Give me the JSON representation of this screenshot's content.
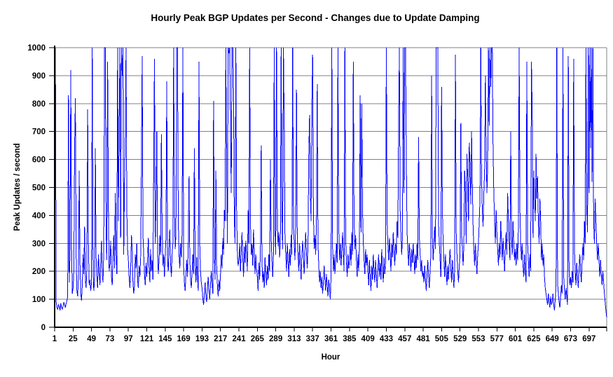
{
  "chart_data": {
    "type": "line",
    "title": "Hourly Peak BGP Updates per Second - Changes due to Update Damping",
    "xlabel": "Hour",
    "ylabel": "Peak Updates / second",
    "xlim": [
      1,
      720
    ],
    "ylim": [
      0,
      1000
    ],
    "x_ticks": [
      1,
      25,
      49,
      73,
      97,
      121,
      145,
      169,
      193,
      217,
      241,
      265,
      289,
      313,
      337,
      361,
      385,
      409,
      433,
      457,
      481,
      505,
      529,
      553,
      577,
      601,
      625,
      649,
      673,
      697
    ],
    "y_ticks": [
      0,
      100,
      200,
      300,
      400,
      500,
      600,
      700,
      800,
      900,
      1000
    ],
    "grid": "horizontal-major",
    "legend": "none",
    "line_color": "#0000FF",
    "gridline_color": "#808080",
    "axis_color": "#000000",
    "background_color": "#FFFFFF",
    "x_start": 1,
    "x_step": 1,
    "values": [
      620,
      1000,
      90,
      70,
      65,
      80,
      75,
      60,
      85,
      70,
      65,
      75,
      90,
      80,
      70,
      85,
      95,
      110,
      830,
      160,
      250,
      920,
      300,
      120,
      140,
      200,
      640,
      820,
      250,
      130,
      110,
      180,
      560,
      230,
      120,
      95,
      150,
      260,
      190,
      360,
      170,
      140,
      220,
      780,
      300,
      150,
      170,
      130,
      160,
      1000,
      210,
      130,
      170,
      640,
      250,
      180,
      140,
      260,
      200,
      150,
      230,
      310,
      190,
      160,
      280,
      1000,
      1000,
      340,
      240,
      950,
      420,
      200,
      230,
      310,
      180,
      150,
      260,
      330,
      210,
      480,
      260,
      190,
      1000,
      380,
      700,
      1000,
      320,
      1000,
      900,
      1000,
      260,
      530,
      690,
      1000,
      420,
      280,
      240,
      180,
      140,
      200,
      330,
      280,
      160,
      120,
      150,
      260,
      210,
      300,
      170,
      140,
      220,
      180,
      250,
      560,
      970,
      330,
      260,
      190,
      150,
      230,
      180,
      240,
      320,
      210,
      160,
      280,
      200,
      240,
      170,
      560,
      960,
      300,
      430,
      700,
      280,
      190,
      240,
      330,
      260,
      690,
      350,
      220,
      260,
      180,
      260,
      320,
      880,
      240,
      200,
      290,
      350,
      230,
      180,
      260,
      300,
      1000,
      430,
      280,
      330,
      1000,
      1000,
      380,
      260,
      210,
      300,
      250,
      340,
      1000,
      220,
      160,
      130,
      190,
      240,
      180,
      290,
      540,
      250,
      170,
      140,
      200,
      260,
      190,
      640,
      230,
      160,
      250,
      180,
      130,
      950,
      300,
      200,
      160,
      140,
      100,
      80,
      120,
      160,
      110,
      90,
      140,
      180,
      130,
      100,
      150,
      200,
      160,
      120,
      810,
      250,
      170,
      560,
      220,
      150,
      110,
      170,
      130,
      190,
      260,
      210,
      320,
      260,
      420,
      380,
      1000,
      560,
      300,
      1000,
      980,
      1000,
      720,
      480,
      1000,
      1000,
      840,
      380,
      300,
      1000,
      420,
      260,
      220,
      240,
      300,
      200,
      260,
      340,
      250,
      180,
      290,
      230,
      310,
      260,
      200,
      420,
      300,
      1000,
      380,
      260,
      300,
      220,
      350,
      270,
      190,
      260,
      210,
      180,
      130,
      230,
      170,
      280,
      650,
      240,
      160,
      200,
      140,
      250,
      190,
      150,
      220,
      170,
      260,
      200,
      600,
      320,
      240,
      180,
      260,
      1000,
      340,
      260,
      1000,
      380,
      290,
      340,
      250,
      300,
      1000,
      420,
      280,
      1000,
      730,
      320,
      260,
      200,
      300,
      240,
      180,
      280,
      220,
      330,
      260,
      1000,
      380,
      300,
      240,
      380,
      850,
      320,
      260,
      200,
      300,
      230,
      170,
      260,
      310,
      250,
      190,
      280,
      340,
      270,
      210,
      300,
      620,
      760,
      480,
      380,
      800,
      975,
      420,
      280,
      330,
      260,
      380,
      870,
      300,
      220,
      160,
      200,
      140,
      180,
      120,
      160,
      220,
      170,
      130,
      190,
      150,
      110,
      170,
      140,
      100,
      180,
      1000,
      280,
      200,
      260,
      190,
      240,
      300,
      230,
      1000,
      360,
      240,
      300,
      220,
      280,
      340,
      260,
      200,
      1000,
      320,
      240,
      180,
      260,
      210,
      240,
      300,
      220,
      340,
      260,
      950,
      380,
      280,
      330,
      240,
      180,
      260,
      200,
      300,
      830,
      340,
      800,
      420,
      300,
      240,
      190,
      280,
      220,
      260,
      200,
      150,
      240,
      180,
      130,
      220,
      170,
      260,
      200,
      160,
      240,
      190,
      140,
      210,
      260,
      180,
      230,
      170,
      280,
      210,
      160,
      250,
      190,
      230,
      1000,
      380,
      300,
      240,
      320,
      260,
      200,
      300,
      250,
      340,
      280,
      220,
      300,
      260,
      380,
      320,
      730,
      1000,
      420,
      340,
      260,
      320,
      1000,
      480,
      1000,
      1000,
      620,
      340,
      280,
      220,
      300,
      260,
      200,
      280,
      230,
      300,
      250,
      190,
      260,
      210,
      300,
      240,
      680,
      320,
      260,
      200,
      240,
      180,
      200,
      160,
      220,
      170,
      130,
      190,
      240,
      180,
      140,
      200,
      260,
      900,
      320,
      240,
      300,
      360,
      280,
      1000,
      1000,
      1000,
      380,
      300,
      240,
      180,
      860,
      420,
      300,
      240,
      180,
      260,
      200,
      150,
      220,
      170,
      230,
      280,
      210,
      160,
      240,
      190,
      140,
      210,
      975,
      340,
      260,
      200,
      160,
      220,
      260,
      730,
      340,
      280,
      220,
      300,
      560,
      480,
      300,
      620,
      540,
      380,
      660,
      580,
      440,
      700,
      520,
      360,
      280,
      220,
      300,
      240,
      190,
      260,
      300,
      380,
      460,
      1000,
      540,
      420,
      360,
      480,
      560,
      900,
      640,
      480,
      580,
      1000,
      720,
      1000,
      860,
      1000,
      1000,
      640,
      480,
      380,
      300,
      420,
      340,
      280,
      220,
      300,
      250,
      380,
      300,
      240,
      320,
      260,
      200,
      280,
      340,
      260,
      480,
      380,
      300,
      240,
      700,
      320,
      260,
      380,
      300,
      240,
      280,
      220,
      300,
      240,
      360,
      1000,
      420,
      300,
      240,
      300,
      220,
      180,
      260,
      200,
      160,
      950,
      300,
      240,
      180,
      260,
      200,
      950,
      770,
      320,
      560,
      480,
      380,
      620,
      460,
      540,
      380,
      300,
      460,
      380,
      240,
      300,
      220,
      260,
      180,
      140,
      120,
      100,
      80,
      120,
      90,
      70,
      110,
      80,
      90,
      120,
      80,
      60,
      100,
      140,
      1000,
      160,
      120,
      90,
      70,
      110,
      150,
      120,
      1000,
      180,
      130,
      100,
      140,
      110,
      80,
      970,
      200,
      150,
      180,
      140,
      200,
      160,
      960,
      280,
      200,
      150,
      230,
      180,
      140,
      210,
      260,
      200,
      160,
      240,
      300,
      240,
      380,
      300,
      1000,
      420,
      340,
      1000,
      480,
      1000,
      640,
      1000,
      520,
      1000,
      380,
      300,
      460,
      380,
      300,
      240,
      300,
      240,
      180,
      240,
      190,
      150,
      200,
      160,
      120,
      90,
      60,
      35
    ]
  }
}
